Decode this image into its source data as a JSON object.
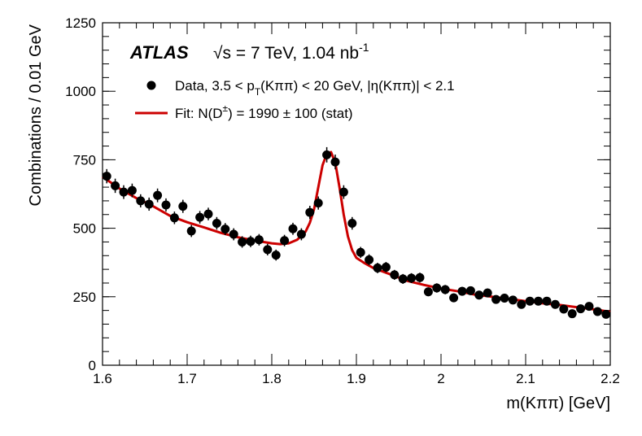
{
  "chart_data": {
    "type": "scatter",
    "experiment": "ATLAS",
    "energy_label": "√s = 7 TeV, 1.04 nb",
    "energy_superscript": "-1",
    "xlabel": "m(Kππ) [GeV]",
    "ylabel": "Combinations / 0.01 GeV",
    "xlim": [
      1.6,
      2.2
    ],
    "ylim": [
      0,
      1250
    ],
    "x_ticks": [
      1.6,
      1.7,
      1.8,
      1.9,
      2,
      2.1,
      2.2
    ],
    "x_tick_labels": [
      "1.6",
      "1.7",
      "1.8",
      "1.9",
      "2",
      "2.1",
      "2.2"
    ],
    "y_ticks": [
      0,
      250,
      500,
      750,
      1000,
      1250
    ],
    "y_tick_labels": [
      "0",
      "250",
      "500",
      "750",
      "1000",
      "1250"
    ],
    "legend": {
      "data_label_parts": [
        "Data, 3.5 < p",
        "T",
        "(Kππ) < 20 GeV, |η(Kππ)| < 2.1"
      ],
      "fit_label_parts": [
        "Fit: N(D",
        "±",
        ") = 1990 ± 100 (stat)"
      ]
    },
    "colors": {
      "data": "#000000",
      "fit": "#cc0000"
    },
    "data_series": {
      "name": "Data",
      "x": [
        1.605,
        1.615,
        1.625,
        1.635,
        1.645,
        1.655,
        1.665,
        1.675,
        1.685,
        1.695,
        1.705,
        1.715,
        1.725,
        1.735,
        1.745,
        1.755,
        1.765,
        1.775,
        1.785,
        1.795,
        1.805,
        1.815,
        1.825,
        1.835,
        1.845,
        1.855,
        1.865,
        1.875,
        1.885,
        1.895,
        1.905,
        1.915,
        1.925,
        1.935,
        1.945,
        1.955,
        1.965,
        1.975,
        1.985,
        1.995,
        2.005,
        2.015,
        2.025,
        2.035,
        2.045,
        2.055,
        2.065,
        2.075,
        2.085,
        2.095,
        2.105,
        2.115,
        2.125,
        2.135,
        2.145,
        2.155,
        2.165,
        2.175,
        2.185,
        2.195
      ],
      "y": [
        690,
        655,
        632,
        638,
        600,
        588,
        620,
        585,
        538,
        580,
        490,
        540,
        552,
        518,
        497,
        478,
        450,
        452,
        458,
        422,
        402,
        455,
        498,
        478,
        558,
        592,
        768,
        742,
        632,
        518,
        412,
        385,
        355,
        358,
        330,
        315,
        318,
        320,
        268,
        282,
        276,
        246,
        270,
        272,
        256,
        264,
        240,
        245,
        238,
        222,
        234,
        234,
        234,
        222,
        205,
        188,
        206,
        215,
        196,
        186
      ],
      "errors": [
        26,
        26,
        25,
        25,
        24,
        24,
        25,
        24,
        23,
        24,
        22,
        23,
        23,
        23,
        22,
        22,
        21,
        21,
        21,
        21,
        20,
        21,
        22,
        22,
        24,
        24,
        28,
        27,
        25,
        23,
        20,
        20,
        19,
        19,
        18,
        18,
        18,
        18,
        16,
        17,
        17,
        16,
        16,
        16,
        16,
        16,
        15,
        16,
        15,
        15,
        15,
        15,
        15,
        15,
        14,
        14,
        14,
        15,
        14,
        14
      ]
    },
    "fit_curve": {
      "name": "Fit",
      "x": [
        1.6,
        1.62,
        1.64,
        1.66,
        1.68,
        1.7,
        1.72,
        1.74,
        1.76,
        1.78,
        1.8,
        1.81,
        1.82,
        1.83,
        1.84,
        1.845,
        1.85,
        1.855,
        1.86,
        1.865,
        1.87,
        1.875,
        1.88,
        1.885,
        1.89,
        1.895,
        1.9,
        1.91,
        1.92,
        1.94,
        1.96,
        1.98,
        2.0,
        2.02,
        2.04,
        2.06,
        2.08,
        2.1,
        2.12,
        2.14,
        2.16,
        2.18,
        2.2
      ],
      "y": [
        688,
        645,
        610,
        580,
        545,
        522,
        503,
        483,
        467,
        455,
        445,
        442,
        445,
        458,
        488,
        520,
        570,
        650,
        730,
        772,
        778,
        740,
        650,
        550,
        470,
        420,
        392,
        372,
        355,
        332,
        308,
        293,
        280,
        270,
        258,
        250,
        242,
        234,
        226,
        220,
        212,
        204,
        195
      ]
    }
  }
}
